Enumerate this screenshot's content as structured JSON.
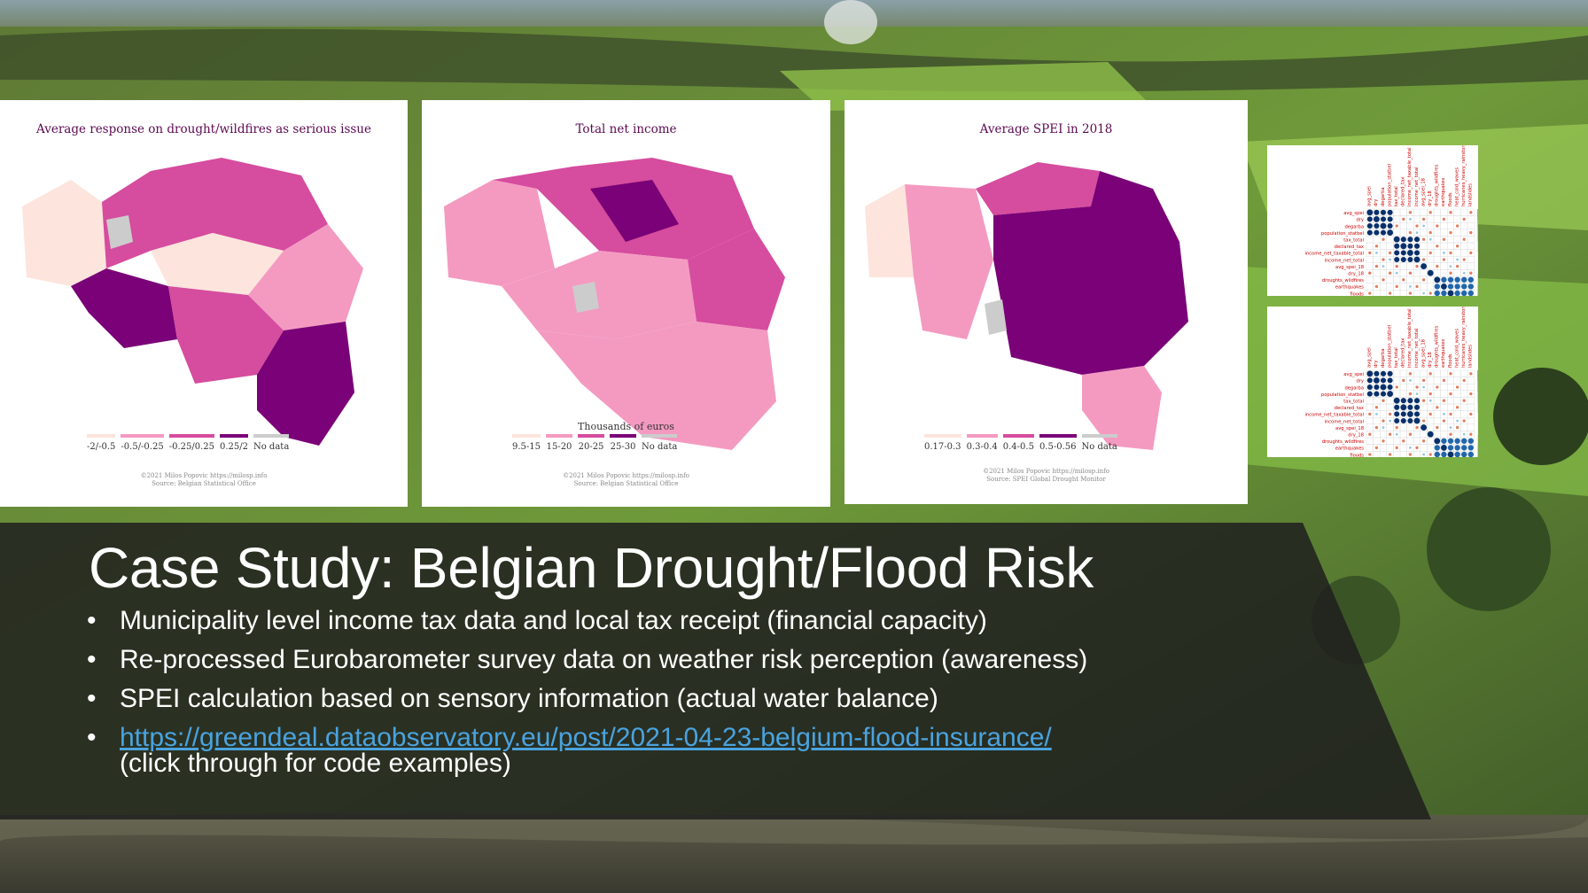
{
  "slide": {
    "title": "Case Study: Belgian Drought/Flood Risk",
    "bullet_char": "•",
    "bullets": [
      "Municipality level income tax data and local tax receipt (financial capacity)",
      "Re-processed Eurobarometer survey data on weather risk perception (awareness)",
      "SPEI calculation based on sensory information (actual water balance)"
    ],
    "link": {
      "text": "https://greendeal.dataobservatory.eu/post/2021-04-23-belgium-flood-insurance/",
      "note": "(click through for code examples)"
    }
  },
  "maps": [
    {
      "title": "Average response on drought/wildfires as serious issue",
      "legend_title": "",
      "legend": [
        "-2/-0.5",
        "-0.5/-0.25",
        "-0.25/0.25",
        "0.25/2",
        "No data"
      ],
      "legend_colors": [
        "#fde4dc",
        "#f49ac1",
        "#d64c9e",
        "#7a0177",
        "#cccccc"
      ],
      "credit_line1": "©2021 Milos Popovic https://milosp.info",
      "credit_line2": "Source: Belgian Statistical Office"
    },
    {
      "title": "Total net income",
      "legend_title": "Thousands of euros",
      "legend": [
        "9.5-15",
        "15-20",
        "20-25",
        "25-30",
        "No data"
      ],
      "legend_colors": [
        "#fde4dc",
        "#f49ac1",
        "#d64c9e",
        "#7a0177",
        "#cccccc"
      ],
      "credit_line1": "©2021 Milos Popovic https://milosp.info",
      "credit_line2": "Source: Belgian Statistical Office"
    },
    {
      "title": "Average SPEI in 2018",
      "legend_title": "",
      "legend": [
        "0.17-0.3",
        "0.3-0.4",
        "0.4-0.5",
        "0.5-0.56",
        "No data"
      ],
      "legend_colors": [
        "#fde4dc",
        "#f49ac1",
        "#d64c9e",
        "#7a0177",
        "#cccccc"
      ],
      "credit_line1": "©2021 Milos Popovic https://milosp.info",
      "credit_line2": "Source: SPEI Global Drought Monitor"
    }
  ],
  "correlation_matrix_vars": [
    "avg_spei",
    "dry",
    "degarba",
    "population_statbel",
    "tax_total",
    "declared_tax",
    "income_net_taxable_total",
    "income_net_total",
    "avg_spei_18",
    "dry_18",
    "droughts_wildfires",
    "earthquakes",
    "floods",
    "heat_cold_waves",
    "hurricanes_heavy_rainstorms",
    "landslides"
  ],
  "correlation_scale": [
    "1",
    "0.8",
    "0.6",
    "0.4",
    "0.2",
    "0",
    "-0.2",
    "-0.4",
    "-0.6",
    "-0.8",
    "-1"
  ],
  "colors": {
    "banner": "#1e1e1e",
    "link": "#4aa3df",
    "map_dark": "#7a0177",
    "map_mid": "#d64c9e",
    "map_light": "#f49ac1",
    "map_pale": "#fde4dc",
    "no_data": "#cccccc"
  }
}
